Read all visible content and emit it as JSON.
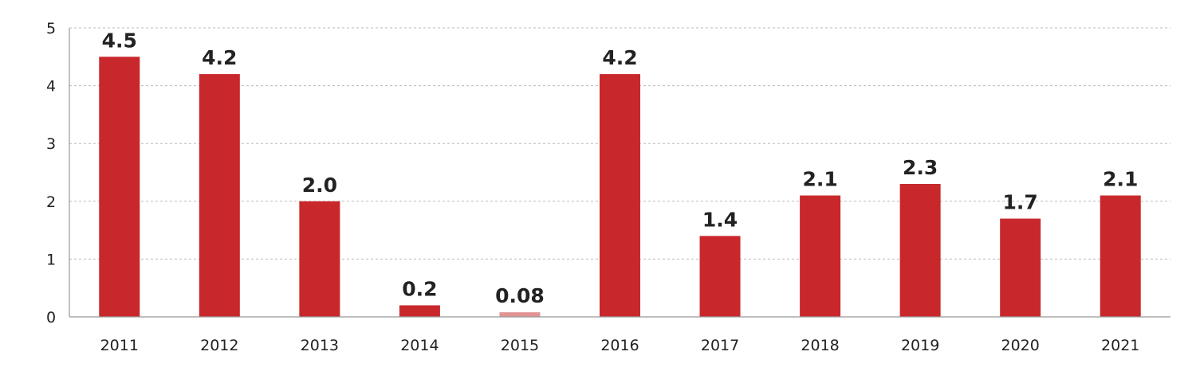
{
  "chart_data": {
    "type": "bar",
    "title": "",
    "xlabel": "",
    "ylabel": "",
    "categories": [
      "2011",
      "2012",
      "2013",
      "2014",
      "2015",
      "2016",
      "2017",
      "2018",
      "2019",
      "2020",
      "2021"
    ],
    "values": [
      4.5,
      4.2,
      2.0,
      0.2,
      0.08,
      4.2,
      1.4,
      2.1,
      2.3,
      1.7,
      2.1
    ],
    "value_labels": [
      "4.5",
      "4.2",
      "2.0",
      "0.2",
      "0.08",
      "4.2",
      "1.4",
      "2.1",
      "2.3",
      "1.7",
      "2.1"
    ],
    "ylim": [
      0,
      5
    ],
    "yticks": [
      "0",
      "1",
      "2",
      "3",
      "4",
      "5"
    ],
    "grid": true,
    "grid_style": "dashed",
    "legend": "none",
    "bar_color": "#c8282c",
    "grid_color": "#bbbbbb",
    "axis_color": "#999999",
    "text_color": "#222222"
  }
}
